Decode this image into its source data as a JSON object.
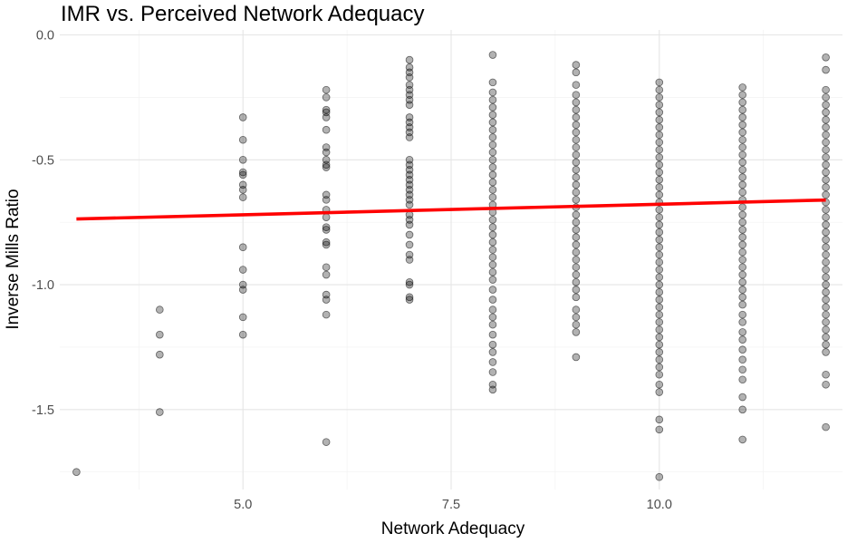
{
  "chart_data": {
    "type": "scatter",
    "title": "IMR vs. Perceived Network Adequacy",
    "xlabel": "Network Adequacy",
    "ylabel": "Inverse Mills Ratio",
    "xlim": [
      2.8,
      12.2
    ],
    "ylim": [
      -1.82,
      0.02
    ],
    "x_ticks": [
      5.0,
      7.5,
      10.0
    ],
    "x_tick_labels": [
      "5.0",
      "7.5",
      "10.0"
    ],
    "y_ticks": [
      0.0,
      -0.5,
      -1.0,
      -1.5
    ],
    "y_tick_labels": [
      "0.0",
      "-0.5",
      "-1.0",
      "-1.5"
    ],
    "grid": true,
    "point_color": "#000000",
    "point_opacity": 0.3,
    "fit_line": {
      "color": "#ff0000",
      "x": [
        3,
        12
      ],
      "y": [
        -0.737,
        -0.661
      ]
    },
    "series": [
      {
        "x": 3,
        "y": [
          -1.75
        ]
      },
      {
        "x": 4,
        "y": [
          -1.1,
          -1.2,
          -1.28,
          -1.51
        ]
      },
      {
        "x": 5,
        "y": [
          -0.33,
          -0.42,
          -0.5,
          -0.55,
          -0.56,
          -0.6,
          -0.62,
          -0.65,
          -0.85,
          -0.94,
          -1.0,
          -1.02,
          -1.13,
          -1.2
        ]
      },
      {
        "x": 6,
        "y": [
          -0.22,
          -0.25,
          -0.3,
          -0.31,
          -0.33,
          -0.38,
          -0.45,
          -0.47,
          -0.5,
          -0.52,
          -0.53,
          -0.64,
          -0.66,
          -0.7,
          -0.73,
          -0.77,
          -0.78,
          -0.83,
          -0.84,
          -0.93,
          -0.96,
          -1.04,
          -1.06,
          -1.12,
          -1.63
        ]
      },
      {
        "x": 7,
        "y": [
          -0.1,
          -0.13,
          -0.15,
          -0.17,
          -0.2,
          -0.22,
          -0.24,
          -0.26,
          -0.28,
          -0.33,
          -0.35,
          -0.37,
          -0.39,
          -0.41,
          -0.5,
          -0.52,
          -0.54,
          -0.56,
          -0.58,
          -0.6,
          -0.62,
          -0.64,
          -0.66,
          -0.68,
          -0.72,
          -0.74,
          -0.76,
          -0.8,
          -0.84,
          -0.88,
          -0.9,
          -0.99,
          -1.0,
          -1.05,
          -1.06
        ]
      },
      {
        "x": 8,
        "y": [
          -0.08,
          -0.19,
          -0.23,
          -0.26,
          -0.29,
          -0.32,
          -0.35,
          -0.38,
          -0.41,
          -0.44,
          -0.47,
          -0.5,
          -0.53,
          -0.56,
          -0.59,
          -0.62,
          -0.65,
          -0.68,
          -0.71,
          -0.74,
          -0.77,
          -0.8,
          -0.83,
          -0.86,
          -0.89,
          -0.92,
          -0.95,
          -0.98,
          -1.02,
          -1.06,
          -1.1,
          -1.13,
          -1.16,
          -1.2,
          -1.24,
          -1.27,
          -1.31,
          -1.35,
          -1.4,
          -1.42
        ]
      },
      {
        "x": 9,
        "y": [
          -0.12,
          -0.15,
          -0.2,
          -0.24,
          -0.27,
          -0.3,
          -0.33,
          -0.36,
          -0.39,
          -0.42,
          -0.45,
          -0.48,
          -0.51,
          -0.54,
          -0.57,
          -0.6,
          -0.63,
          -0.66,
          -0.69,
          -0.72,
          -0.75,
          -0.78,
          -0.81,
          -0.84,
          -0.87,
          -0.9,
          -0.93,
          -0.96,
          -0.99,
          -1.02,
          -1.05,
          -1.1,
          -1.13,
          -1.16,
          -1.19,
          -1.29
        ]
      },
      {
        "x": 10,
        "y": [
          -0.19,
          -0.22,
          -0.25,
          -0.28,
          -0.31,
          -0.34,
          -0.37,
          -0.4,
          -0.43,
          -0.46,
          -0.49,
          -0.52,
          -0.55,
          -0.58,
          -0.61,
          -0.64,
          -0.67,
          -0.7,
          -0.73,
          -0.76,
          -0.79,
          -0.82,
          -0.85,
          -0.88,
          -0.91,
          -0.94,
          -0.97,
          -1.0,
          -1.03,
          -1.06,
          -1.09,
          -1.12,
          -1.15,
          -1.18,
          -1.21,
          -1.24,
          -1.27,
          -1.3,
          -1.33,
          -1.36,
          -1.4,
          -1.43,
          -1.54,
          -1.58,
          -1.77
        ]
      },
      {
        "x": 11,
        "y": [
          -0.21,
          -0.24,
          -0.27,
          -0.3,
          -0.33,
          -0.36,
          -0.39,
          -0.42,
          -0.45,
          -0.48,
          -0.51,
          -0.54,
          -0.57,
          -0.6,
          -0.63,
          -0.66,
          -0.69,
          -0.72,
          -0.75,
          -0.78,
          -0.81,
          -0.84,
          -0.87,
          -0.9,
          -0.93,
          -0.96,
          -0.99,
          -1.02,
          -1.05,
          -1.08,
          -1.12,
          -1.15,
          -1.19,
          -1.22,
          -1.26,
          -1.3,
          -1.34,
          -1.38,
          -1.45,
          -1.5,
          -1.62
        ]
      },
      {
        "x": 12,
        "y": [
          -0.09,
          -0.14,
          -0.22,
          -0.25,
          -0.28,
          -0.31,
          -0.34,
          -0.37,
          -0.4,
          -0.43,
          -0.46,
          -0.49,
          -0.52,
          -0.55,
          -0.58,
          -0.61,
          -0.64,
          -0.67,
          -0.7,
          -0.73,
          -0.76,
          -0.79,
          -0.82,
          -0.85,
          -0.88,
          -0.91,
          -0.94,
          -0.97,
          -1.0,
          -1.03,
          -1.06,
          -1.09,
          -1.12,
          -1.15,
          -1.18,
          -1.21,
          -1.24,
          -1.27,
          -1.36,
          -1.4,
          -1.57
        ]
      }
    ]
  }
}
